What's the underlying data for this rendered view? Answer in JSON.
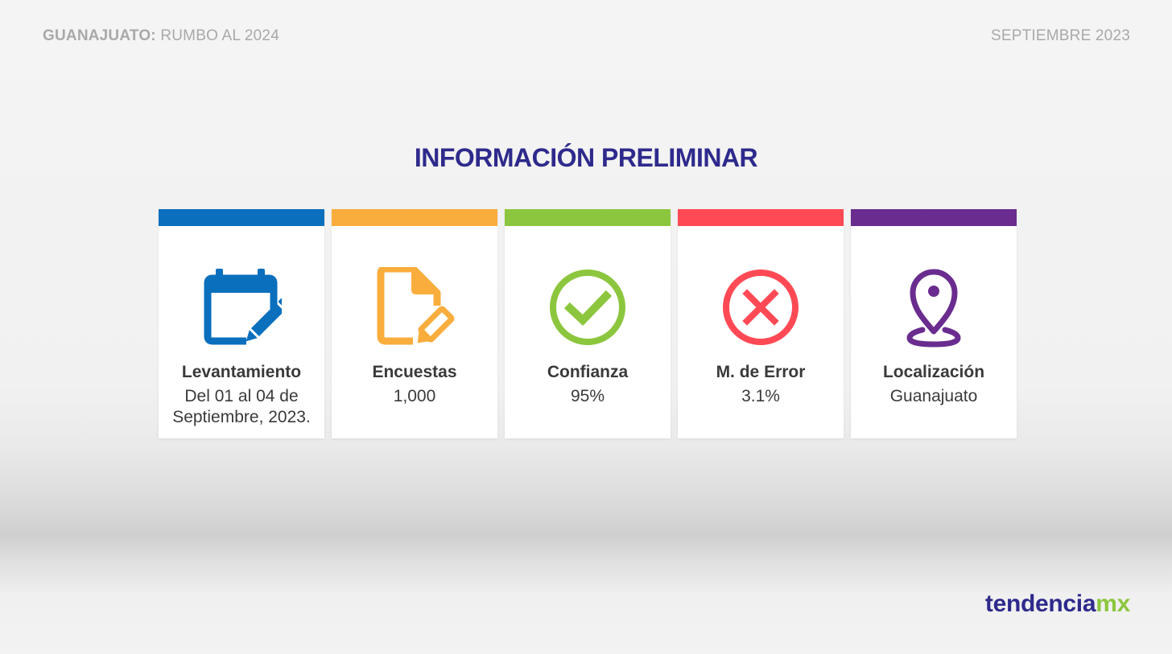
{
  "header": {
    "left_bold": "GUANAJUATO:",
    "left_rest": " RUMBO AL 2024",
    "right": "SEPTIEMBRE 2023"
  },
  "title": "INFORMACIÓN PRELIMINAR",
  "cards": [
    {
      "label": "Levantamiento",
      "value": "Del 01 al 04 de Septiembre, 2023.",
      "color": "#0a6fbd",
      "icon": "calendar-edit-icon"
    },
    {
      "label": "Encuestas",
      "value": "1,000",
      "color": "#f9ad3c",
      "icon": "document-edit-icon"
    },
    {
      "label": "Confianza",
      "value": "95%",
      "color": "#8cc63e",
      "icon": "check-circle-icon"
    },
    {
      "label": "M. de Error",
      "value": "3.1%",
      "color": "#ff4a55",
      "icon": "x-circle-icon"
    },
    {
      "label": "Localización",
      "value": "Guanajuato",
      "color": "#6a2c8f",
      "icon": "location-pin-icon"
    }
  ],
  "brand": {
    "part1": "tendencia",
    "part2": "mx"
  }
}
